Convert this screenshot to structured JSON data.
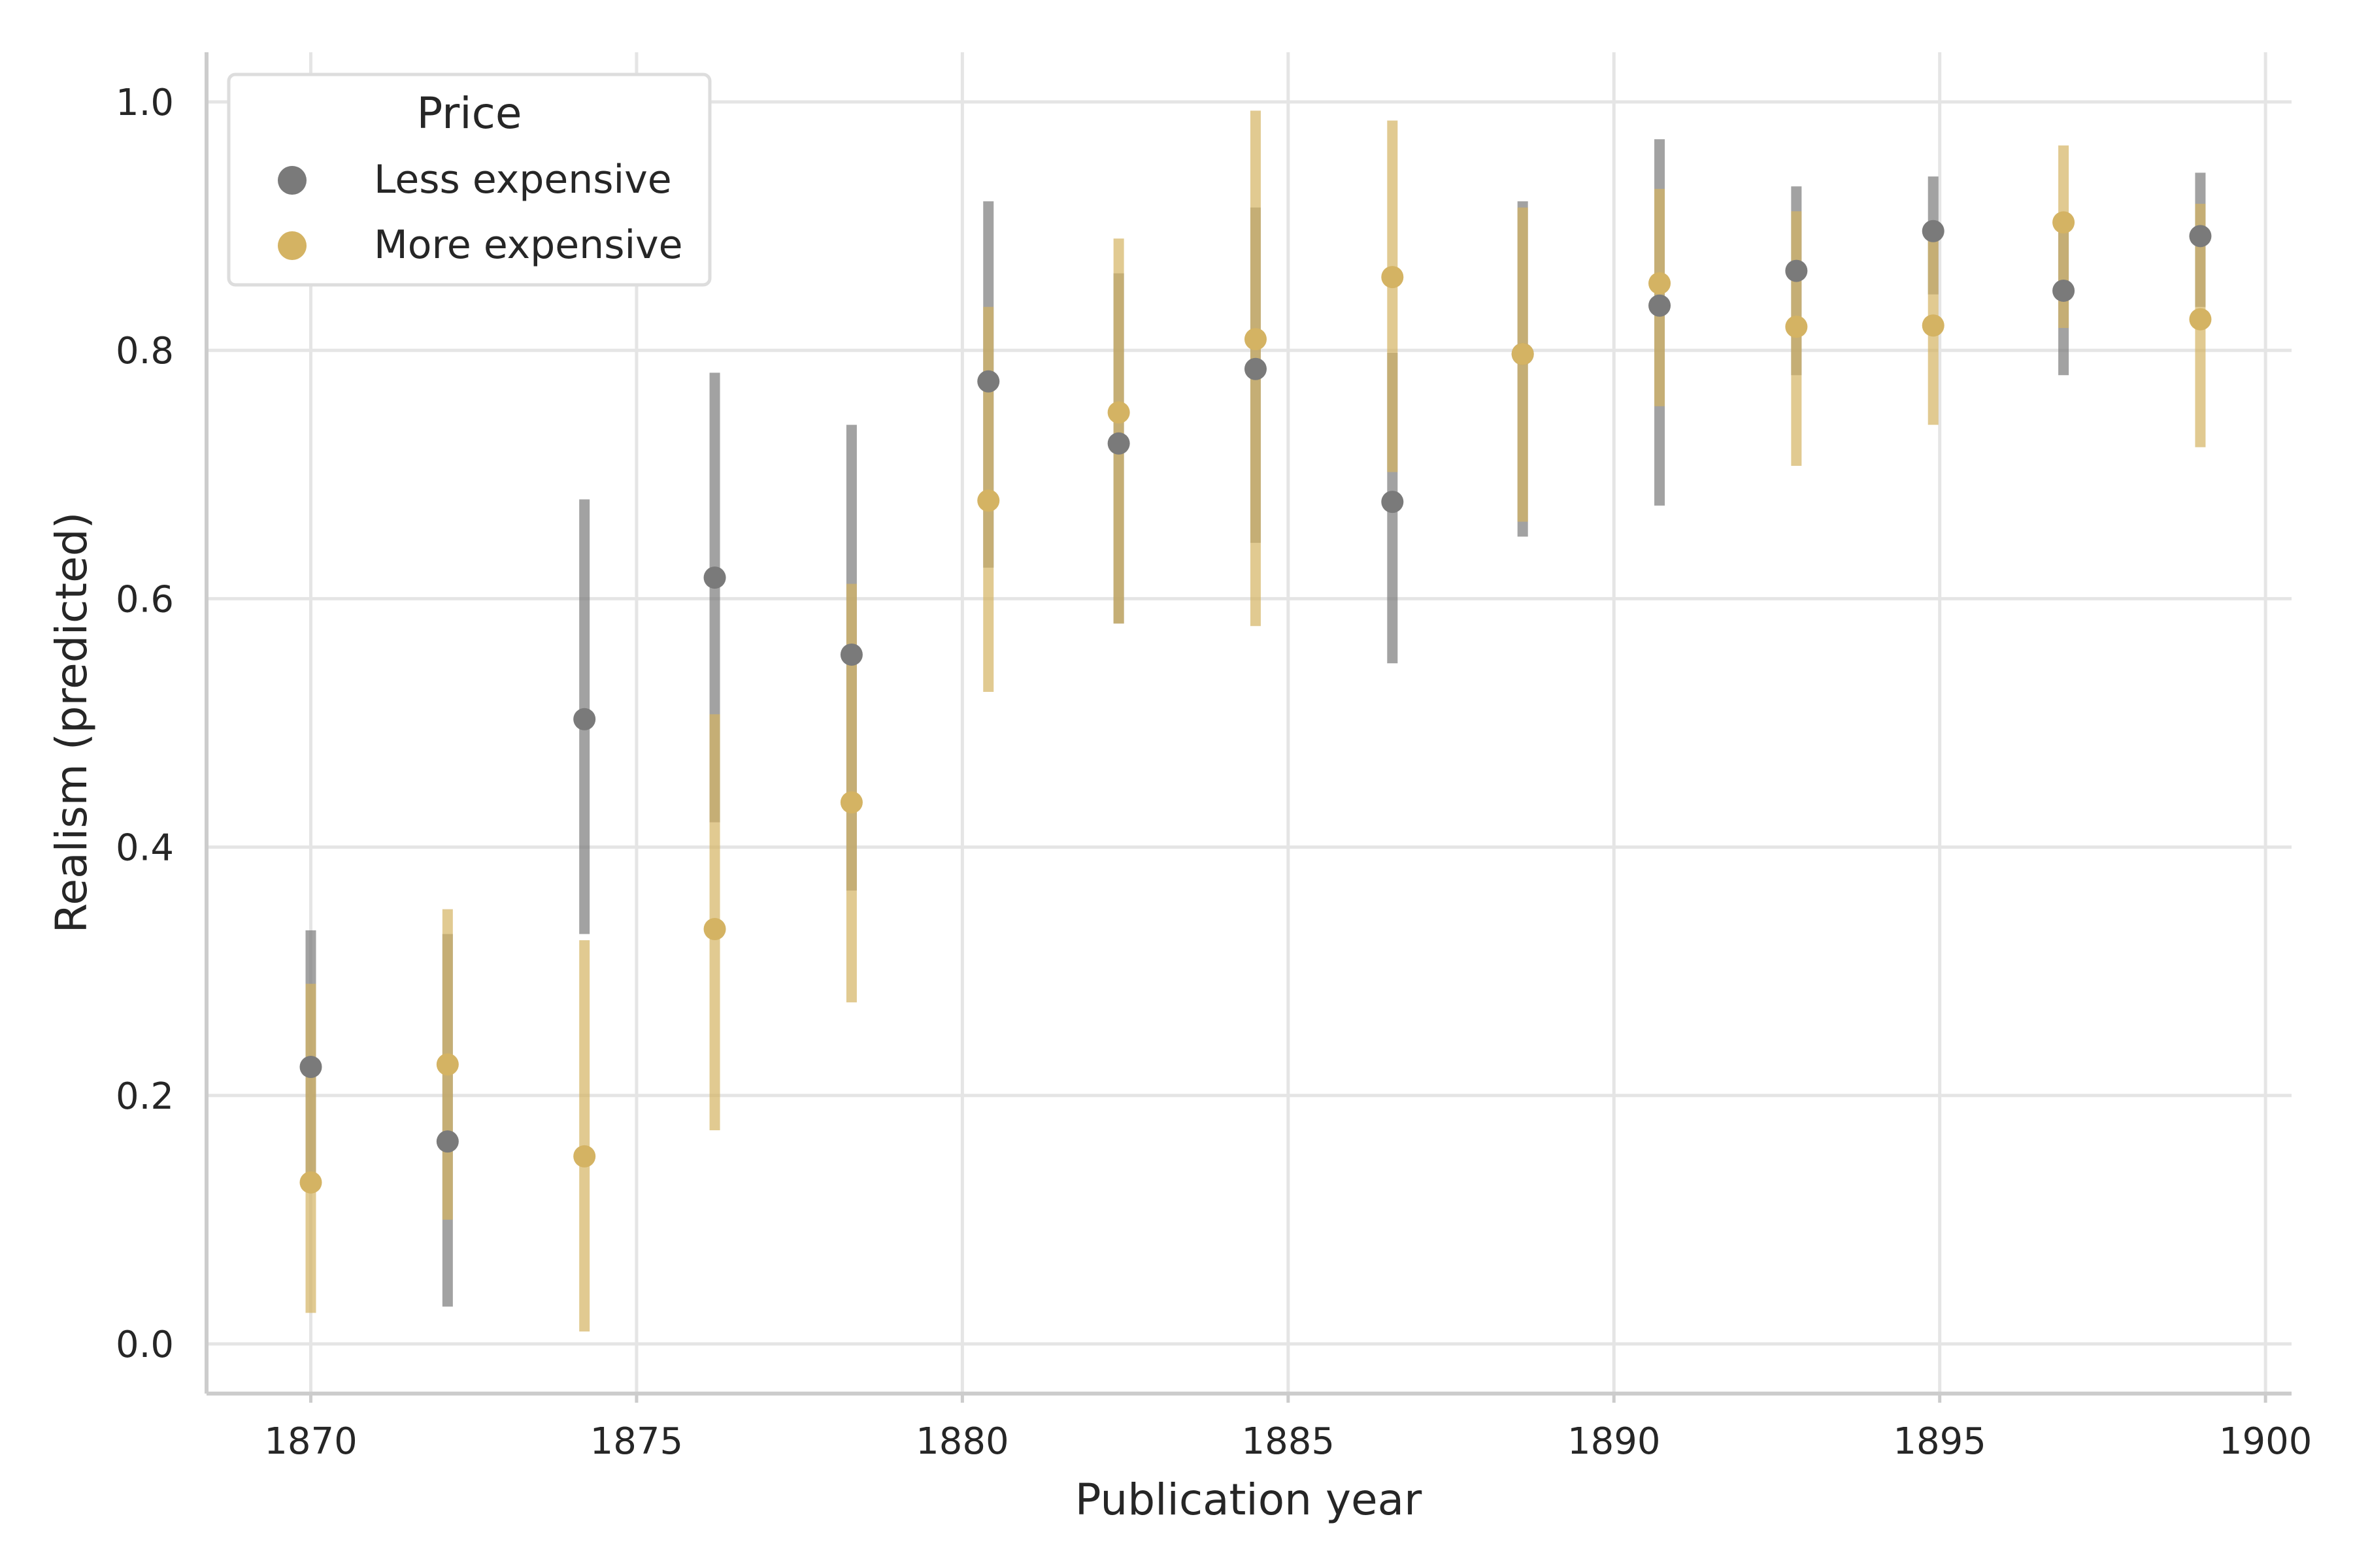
{
  "chart_data": {
    "type": "scatter",
    "xlabel": "Publication year",
    "ylabel": "Realism (predicted)",
    "xlim": [
      1868.4,
      1900.4
    ],
    "ylim": [
      -0.04,
      1.04
    ],
    "x_ticks": [
      1870,
      1875,
      1880,
      1885,
      1890,
      1895,
      1900
    ],
    "y_ticks": [
      0.0,
      0.2,
      0.4,
      0.6,
      0.8,
      1.0
    ],
    "y_tick_labels": [
      "0.0",
      "0.2",
      "0.4",
      "0.6",
      "0.8",
      "1.0"
    ],
    "grid": true,
    "legend": {
      "title": "Price",
      "placement": "top-left"
    },
    "series": [
      {
        "name": "Less expensive",
        "color": "#7a7a7a",
        "points": [
          {
            "x": 1870.0,
            "y": 0.223,
            "lo": 0.13,
            "hi": 0.333
          },
          {
            "x": 1872.1,
            "y": 0.163,
            "lo": 0.03,
            "hi": 0.33
          },
          {
            "x": 1874.2,
            "y": 0.503,
            "lo": 0.33,
            "hi": 0.68
          },
          {
            "x": 1876.2,
            "y": 0.617,
            "lo": 0.42,
            "hi": 0.782
          },
          {
            "x": 1878.3,
            "y": 0.555,
            "lo": 0.365,
            "hi": 0.74
          },
          {
            "x": 1880.4,
            "y": 0.775,
            "lo": 0.625,
            "hi": 0.92
          },
          {
            "x": 1882.4,
            "y": 0.725,
            "lo": 0.58,
            "hi": 0.862
          },
          {
            "x": 1884.5,
            "y": 0.785,
            "lo": 0.645,
            "hi": 0.915
          },
          {
            "x": 1886.6,
            "y": 0.678,
            "lo": 0.548,
            "hi": 0.798
          },
          {
            "x": 1888.6,
            "y": 0.797,
            "lo": 0.65,
            "hi": 0.92
          },
          {
            "x": 1890.7,
            "y": 0.836,
            "lo": 0.675,
            "hi": 0.97
          },
          {
            "x": 1892.8,
            "y": 0.864,
            "lo": 0.78,
            "hi": 0.932
          },
          {
            "x": 1894.9,
            "y": 0.896,
            "lo": 0.845,
            "hi": 0.94
          },
          {
            "x": 1896.9,
            "y": 0.848,
            "lo": 0.78,
            "hi": 0.908
          },
          {
            "x": 1899.0,
            "y": 0.892,
            "lo": 0.835,
            "hi": 0.943
          }
        ]
      },
      {
        "name": "More expensive",
        "color": "#d4b363",
        "points": [
          {
            "x": 1870.0,
            "y": 0.13,
            "lo": 0.025,
            "hi": 0.29
          },
          {
            "x": 1872.1,
            "y": 0.225,
            "lo": 0.1,
            "hi": 0.35
          },
          {
            "x": 1874.2,
            "y": 0.151,
            "lo": 0.01,
            "hi": 0.325
          },
          {
            "x": 1876.2,
            "y": 0.334,
            "lo": 0.172,
            "hi": 0.507
          },
          {
            "x": 1878.3,
            "y": 0.436,
            "lo": 0.275,
            "hi": 0.612
          },
          {
            "x": 1880.4,
            "y": 0.679,
            "lo": 0.525,
            "hi": 0.835
          },
          {
            "x": 1882.4,
            "y": 0.75,
            "lo": 0.58,
            "hi": 0.89
          },
          {
            "x": 1884.5,
            "y": 0.809,
            "lo": 0.578,
            "hi": 0.993
          },
          {
            "x": 1886.6,
            "y": 0.859,
            "lo": 0.702,
            "hi": 0.985
          },
          {
            "x": 1888.6,
            "y": 0.797,
            "lo": 0.662,
            "hi": 0.915
          },
          {
            "x": 1890.7,
            "y": 0.854,
            "lo": 0.755,
            "hi": 0.93
          },
          {
            "x": 1892.8,
            "y": 0.819,
            "lo": 0.707,
            "hi": 0.912
          },
          {
            "x": 1894.9,
            "y": 0.82,
            "lo": 0.74,
            "hi": 0.897
          },
          {
            "x": 1896.9,
            "y": 0.903,
            "lo": 0.818,
            "hi": 0.965
          },
          {
            "x": 1899.0,
            "y": 0.825,
            "lo": 0.722,
            "hi": 0.918
          }
        ]
      }
    ]
  }
}
